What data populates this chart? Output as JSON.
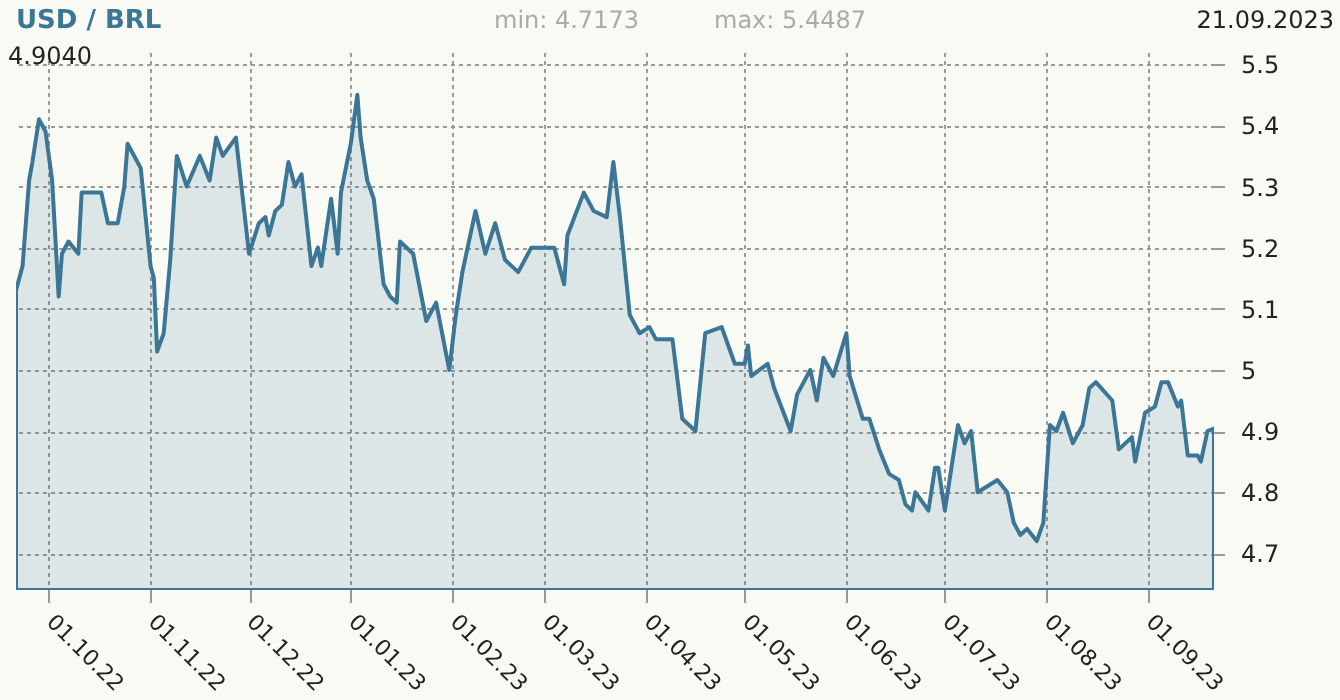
{
  "chart_data": {
    "type": "area",
    "title": "USD / BRL",
    "annotations": [
      "min: 4.7173",
      "max: 5.4487",
      "21.09.2023",
      "4.9040"
    ],
    "x": [
      "2022-09-21",
      "2022-09-23",
      "2022-09-25",
      "2022-09-26",
      "2022-09-28",
      "2022-09-30",
      "2022-10-02",
      "2022-10-04",
      "2022-10-05",
      "2022-10-07",
      "2022-10-10",
      "2022-10-11",
      "2022-10-17",
      "2022-10-19",
      "2022-10-22",
      "2022-10-24",
      "2022-10-25",
      "2022-10-29",
      "2022-11-01",
      "2022-11-02",
      "2022-11-03",
      "2022-11-05",
      "2022-11-07",
      "2022-11-09",
      "2022-11-12",
      "2022-11-16",
      "2022-11-19",
      "2022-11-21",
      "2022-11-23",
      "2022-11-27",
      "2022-12-01",
      "2022-12-04",
      "2022-12-06",
      "2022-12-07",
      "2022-12-09",
      "2022-12-11",
      "2022-12-13",
      "2022-12-15",
      "2022-12-17",
      "2022-12-20",
      "2022-12-22",
      "2022-12-23",
      "2022-12-26",
      "2022-12-28",
      "2022-12-29",
      "2023-01-01",
      "2023-01-03",
      "2023-01-04",
      "2023-01-06",
      "2023-01-08",
      "2023-01-11",
      "2023-01-13",
      "2023-01-15",
      "2023-01-16",
      "2023-01-20",
      "2023-01-24",
      "2023-01-27",
      "2023-01-31",
      "2023-02-02",
      "2023-02-04",
      "2023-02-08",
      "2023-02-11",
      "2023-02-14",
      "2023-02-17",
      "2023-02-21",
      "2023-02-25",
      "2023-03-02",
      "2023-03-04",
      "2023-03-07",
      "2023-03-08",
      "2023-03-13",
      "2023-03-16",
      "2023-03-20",
      "2023-03-22",
      "2023-03-24",
      "2023-03-27",
      "2023-03-30",
      "2023-04-02",
      "2023-04-04",
      "2023-04-09",
      "2023-04-12",
      "2023-04-16",
      "2023-04-19",
      "2023-04-24",
      "2023-04-28",
      "2023-05-01",
      "2023-05-02",
      "2023-05-03",
      "2023-05-08",
      "2023-05-10",
      "2023-05-15",
      "2023-05-17",
      "2023-05-21",
      "2023-05-23",
      "2023-05-25",
      "2023-05-28",
      "2023-06-01",
      "2023-06-02",
      "2023-06-06",
      "2023-06-08",
      "2023-06-11",
      "2023-06-14",
      "2023-06-17",
      "2023-06-19",
      "2023-06-21",
      "2023-06-22",
      "2023-06-26",
      "2023-06-28",
      "2023-06-29",
      "2023-07-01",
      "2023-07-05",
      "2023-07-07",
      "2023-07-09",
      "2023-07-11",
      "2023-07-17",
      "2023-07-20",
      "2023-07-22",
      "2023-07-24",
      "2023-07-26",
      "2023-07-29",
      "2023-07-31",
      "2023-08-02",
      "2023-08-04",
      "2023-08-06",
      "2023-08-09",
      "2023-08-12",
      "2023-08-14",
      "2023-08-16",
      "2023-08-21",
      "2023-08-23",
      "2023-08-27",
      "2023-08-28",
      "2023-08-31",
      "2023-09-03",
      "2023-09-05",
      "2023-09-07",
      "2023-09-10",
      "2023-09-11",
      "2023-09-13",
      "2023-09-16",
      "2023-09-17",
      "2023-09-19",
      "2023-09-21"
    ],
    "series": [
      {
        "color": "#3b7696",
        "values": [
          5.13,
          5.17,
          5.31,
          5.34,
          5.41,
          5.39,
          5.31,
          5.12,
          5.19,
          5.21,
          5.19,
          5.29,
          5.29,
          5.24,
          5.24,
          5.3,
          5.37,
          5.33,
          5.17,
          5.15,
          5.03,
          5.06,
          5.18,
          5.35,
          5.3,
          5.35,
          5.31,
          5.38,
          5.35,
          5.38,
          5.19,
          5.24,
          5.25,
          5.22,
          5.26,
          5.27,
          5.34,
          5.3,
          5.32,
          5.17,
          5.2,
          5.17,
          5.28,
          5.19,
          5.29,
          5.37,
          5.45,
          5.38,
          5.31,
          5.28,
          5.14,
          5.12,
          5.11,
          5.21,
          5.19,
          5.08,
          5.11,
          5.0,
          5.09,
          5.16,
          5.26,
          5.19,
          5.24,
          5.18,
          5.16,
          5.2,
          5.2,
          5.2,
          5.14,
          5.22,
          5.29,
          5.26,
          5.25,
          5.34,
          5.25,
          5.09,
          5.06,
          5.07,
          5.05,
          5.05,
          4.92,
          4.9,
          5.06,
          5.07,
          5.01,
          5.01,
          5.04,
          4.99,
          5.01,
          4.97,
          4.9,
          4.96,
          5.0,
          4.95,
          5.02,
          4.99,
          5.06,
          4.99,
          4.92,
          4.92,
          4.87,
          4.83,
          4.82,
          4.78,
          4.77,
          4.8,
          4.77,
          4.84,
          4.84,
          4.77,
          4.91,
          4.88,
          4.9,
          4.8,
          4.82,
          4.8,
          4.75,
          4.73,
          4.74,
          4.72,
          4.75,
          4.91,
          4.9,
          4.93,
          4.88,
          4.91,
          4.97,
          4.98,
          4.95,
          4.87,
          4.89,
          4.85,
          4.93,
          4.94,
          4.98,
          4.98,
          4.94,
          4.95,
          4.86,
          4.86,
          4.85,
          4.9,
          4.904
        ]
      }
    ],
    "xlim": [
      "2022-09-21",
      "2023-09-21"
    ],
    "xticks": [
      {
        "value": "2022-10-01",
        "label": "01.10.22"
      },
      {
        "value": "2022-11-01",
        "label": "01.11.22"
      },
      {
        "value": "2022-12-01",
        "label": "01.12.22"
      },
      {
        "value": "2023-01-01",
        "label": "01.01.23"
      },
      {
        "value": "2023-02-01",
        "label": "01.02.23"
      },
      {
        "value": "2023-03-01",
        "label": "01.03.23"
      },
      {
        "value": "2023-04-01",
        "label": "01.04.23"
      },
      {
        "value": "2023-05-01",
        "label": "01.05.23"
      },
      {
        "value": "2023-06-01",
        "label": "01.06.23"
      },
      {
        "value": "2023-07-01",
        "label": "01.07.23"
      },
      {
        "value": "2023-08-01",
        "label": "01.08.23"
      },
      {
        "value": "2023-09-01",
        "label": "01.09.23"
      }
    ],
    "ylim": [
      4.64,
      5.52
    ],
    "yticks": [
      4.7,
      4.8,
      4.9,
      5,
      5.1,
      5.2,
      5.3,
      5.4,
      5.5
    ],
    "grid": true,
    "line_style": "solid",
    "marker": "none"
  }
}
